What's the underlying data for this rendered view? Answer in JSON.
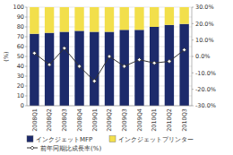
{
  "chart_data": {
    "type": "bar",
    "stacked": true,
    "grid": true,
    "legend": "bottom",
    "categories": [
      "2008Q1",
      "2008Q2",
      "2008Q3",
      "2008Q4",
      "2009Q1",
      "2009Q2",
      "2009Q3",
      "2009Q4",
      "2010Q1",
      "2010Q2",
      "2010Q3"
    ],
    "y_label": "(%)",
    "ylim": [
      0,
      100
    ],
    "yticks": [
      0,
      10,
      20,
      30,
      40,
      50,
      60,
      70,
      80,
      90,
      100
    ],
    "y2lim": [
      -30,
      30
    ],
    "y2ticks": [
      {
        "value": -30,
        "label": "-30.0%"
      },
      {
        "value": -20,
        "label": "-20.0%"
      },
      {
        "value": -10,
        "label": "-10.0%"
      },
      {
        "value": 0,
        "label": "0.0%"
      },
      {
        "value": 10,
        "label": "10.0%"
      },
      {
        "value": 20,
        "label": "20.0%"
      },
      {
        "value": 30,
        "label": "30.0%"
      }
    ],
    "series": [
      {
        "name": "インクジェットMFP",
        "color": "#1c2a6b",
        "values": [
          73,
          74,
          75,
          76,
          75,
          75,
          77,
          77,
          80,
          82,
          83
        ]
      },
      {
        "name": "インクジェットプリンター",
        "color": "#f2df4b",
        "values": [
          27,
          26,
          25,
          24,
          25,
          25,
          23,
          23,
          20,
          18,
          17
        ]
      },
      {
        "name": "前年同期比成長率(%)",
        "type": "line",
        "axis": "y2",
        "color": "#333333",
        "marker": "diamond",
        "values": [
          2,
          -5,
          5,
          -6,
          -15,
          0,
          -6,
          -2,
          -4,
          -3,
          4
        ]
      }
    ]
  }
}
